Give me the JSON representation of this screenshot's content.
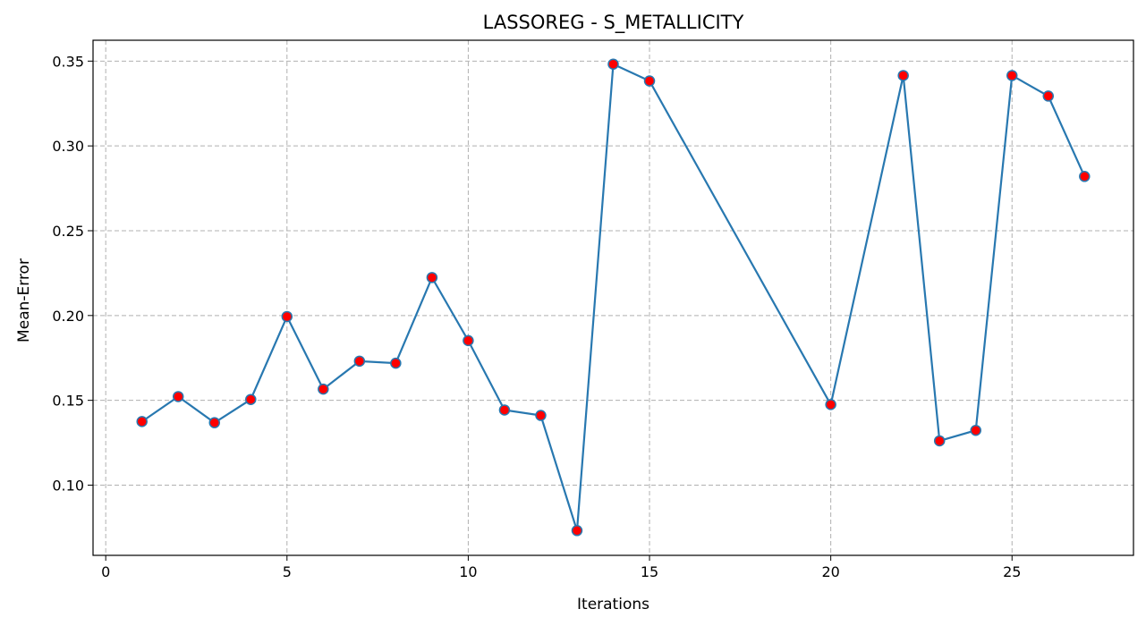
{
  "chart_data": {
    "type": "line",
    "title": "LASSOREG - S_METALLICITY",
    "xlabel": "Iterations",
    "ylabel": "Mean-Error",
    "xlim": [
      -0.35,
      28.35
    ],
    "ylim": [
      0.0586,
      0.3623
    ],
    "xticks": [
      0,
      5,
      10,
      15,
      20,
      25
    ],
    "yticks": [
      0.1,
      0.15,
      0.2,
      0.25,
      0.3,
      0.35
    ],
    "ytick_labels": [
      "0.10",
      "0.15",
      "0.20",
      "0.25",
      "0.30",
      "0.35"
    ],
    "grid": true,
    "line_color": "#2878b0",
    "marker_face_color": "#ff0000",
    "marker_edge_color": "#2878b0",
    "x": [
      1,
      2,
      3,
      4,
      5,
      6,
      7,
      8,
      9,
      10,
      11,
      12,
      13,
      14,
      15,
      20,
      22,
      23,
      24,
      25,
      26,
      27
    ],
    "values": [
      0.1375,
      0.1522,
      0.1368,
      0.1505,
      0.1994,
      0.1566,
      0.1731,
      0.1719,
      0.2224,
      0.1852,
      0.1443,
      0.1411,
      0.0732,
      0.3482,
      0.3383,
      0.1475,
      0.3415,
      0.1261,
      0.1323,
      0.3415,
      0.3294,
      0.282
    ]
  }
}
